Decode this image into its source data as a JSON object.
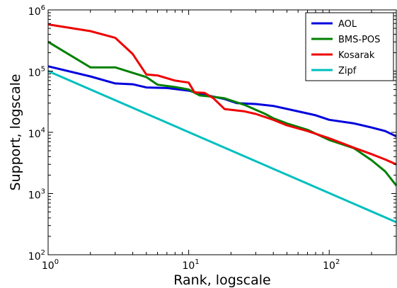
{
  "chart_data": {
    "type": "line",
    "title": "",
    "xlabel": "Rank, logscale",
    "ylabel": "Support, logscale",
    "x_scale": "log",
    "y_scale": "log",
    "xlim": [
      1,
      300
    ],
    "ylim": [
      100,
      1000000
    ],
    "x_ticks": [
      {
        "value": 1,
        "base": "10",
        "exp": "0"
      },
      {
        "value": 10,
        "base": "10",
        "exp": "1"
      },
      {
        "value": 100,
        "base": "10",
        "exp": "2"
      }
    ],
    "y_ticks": [
      {
        "value": 100,
        "base": "10",
        "exp": "2"
      },
      {
        "value": 1000,
        "base": "10",
        "exp": "3"
      },
      {
        "value": 10000,
        "base": "10",
        "exp": "4"
      },
      {
        "value": 100000,
        "base": "10",
        "exp": "5"
      },
      {
        "value": 1000000,
        "base": "10",
        "exp": "6"
      }
    ],
    "grid": false,
    "legend_position": "top-right",
    "series": [
      {
        "name": "AOL",
        "color": "#0000dd",
        "points": [
          [
            1,
            120000
          ],
          [
            2,
            82000
          ],
          [
            3,
            63000
          ],
          [
            4,
            61000
          ],
          [
            5,
            54000
          ],
          [
            7,
            53000
          ],
          [
            10,
            48000
          ],
          [
            13,
            41000
          ],
          [
            18,
            35000
          ],
          [
            22,
            30000
          ],
          [
            30,
            29000
          ],
          [
            40,
            27000
          ],
          [
            60,
            22000
          ],
          [
            80,
            19000
          ],
          [
            100,
            16000
          ],
          [
            150,
            14000
          ],
          [
            200,
            12000
          ],
          [
            250,
            10500
          ],
          [
            300,
            8600
          ]
        ]
      },
      {
        "name": "BMS-POS",
        "color": "#008000",
        "points": [
          [
            1,
            300000
          ],
          [
            2,
            115000
          ],
          [
            3,
            115000
          ],
          [
            5,
            80000
          ],
          [
            6,
            60000
          ],
          [
            8,
            55000
          ],
          [
            10,
            50000
          ],
          [
            12,
            40000
          ],
          [
            15,
            38000
          ],
          [
            18,
            36000
          ],
          [
            25,
            28000
          ],
          [
            35,
            20000
          ],
          [
            40,
            17000
          ],
          [
            50,
            14000
          ],
          [
            70,
            11000
          ],
          [
            80,
            9500
          ],
          [
            100,
            7500
          ],
          [
            150,
            5500
          ],
          [
            200,
            3500
          ],
          [
            250,
            2300
          ],
          [
            300,
            1350
          ]
        ]
      },
      {
        "name": "Kosarak",
        "color": "#ee0000",
        "points": [
          [
            1,
            580000
          ],
          [
            2,
            450000
          ],
          [
            3,
            350000
          ],
          [
            4,
            190000
          ],
          [
            5,
            88000
          ],
          [
            6,
            85000
          ],
          [
            8,
            70000
          ],
          [
            10,
            65000
          ],
          [
            11,
            45000
          ],
          [
            13,
            44000
          ],
          [
            15,
            36000
          ],
          [
            18,
            24000
          ],
          [
            25,
            22000
          ],
          [
            30,
            20000
          ],
          [
            40,
            16000
          ],
          [
            50,
            13000
          ],
          [
            70,
            10500
          ],
          [
            100,
            8000
          ],
          [
            150,
            5600
          ],
          [
            200,
            4400
          ],
          [
            250,
            3600
          ],
          [
            300,
            3000
          ]
        ]
      },
      {
        "name": "Zipf",
        "color": "#00bfbf",
        "points": [
          [
            1,
            100000
          ],
          [
            300,
            340
          ]
        ]
      }
    ]
  }
}
